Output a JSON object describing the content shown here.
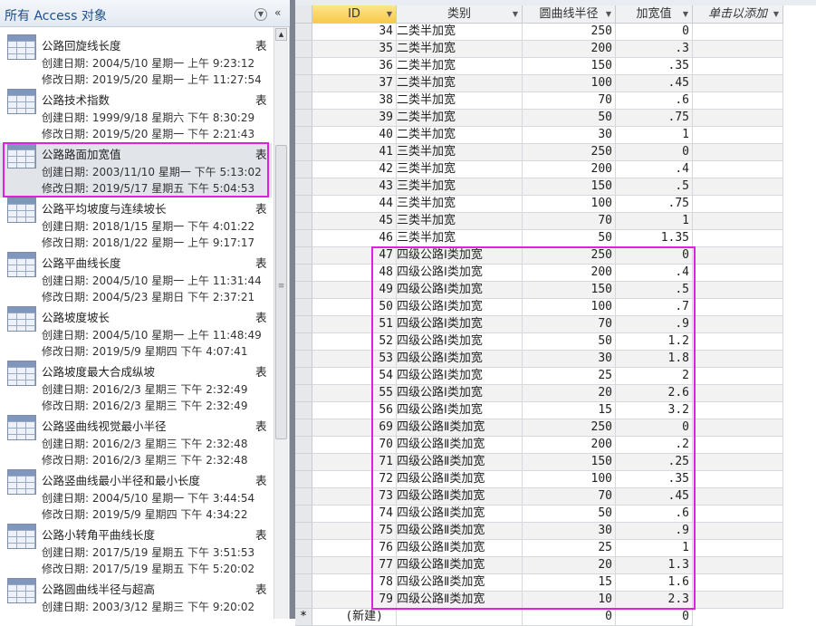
{
  "nav": {
    "title": "所有 Access 对象",
    "menu_icon": "chevron-down-circle-icon",
    "collapse_icon": "double-chevron-left-icon",
    "type_label": "表",
    "items": [
      {
        "name": "公路回旋线长度",
        "created": "创建日期: 2004/5/10 星期一 上午 9:23:12",
        "modified": "修改日期: 2019/5/20 星期一 上午 11:27:54"
      },
      {
        "name": "公路技术指数",
        "created": "创建日期: 1999/9/18 星期六 下午 8:30:29",
        "modified": "修改日期: 2019/5/20 星期一 下午 2:21:43"
      },
      {
        "name": "公路路面加宽值",
        "created": "创建日期: 2003/11/10 星期一 下午 5:13:02",
        "modified": "修改日期: 2019/5/17 星期五 下午 5:04:53",
        "selected": true
      },
      {
        "name": "公路平均坡度与连续坡长",
        "created": "创建日期: 2018/1/15 星期一 下午 4:01:22",
        "modified": "修改日期: 2018/1/22 星期一 上午 9:17:17"
      },
      {
        "name": "公路平曲线长度",
        "created": "创建日期: 2004/5/10 星期一 上午 11:31:44",
        "modified": "修改日期: 2004/5/23 星期日 下午 2:37:21"
      },
      {
        "name": "公路坡度坡长",
        "created": "创建日期: 2004/5/10 星期一 上午 11:48:49",
        "modified": "修改日期: 2019/5/9 星期四 下午 4:07:41"
      },
      {
        "name": "公路坡度最大合成纵坡",
        "created": "创建日期: 2016/2/3 星期三 下午 2:32:49",
        "modified": "修改日期: 2016/2/3 星期三 下午 2:32:49"
      },
      {
        "name": "公路竖曲线视觉最小半径",
        "created": "创建日期: 2016/2/3 星期三 下午 2:32:48",
        "modified": "修改日期: 2016/2/3 星期三 下午 2:32:48"
      },
      {
        "name": "公路竖曲线最小半径和最小长度",
        "created": "创建日期: 2004/5/10 星期一 下午 3:44:54",
        "modified": "修改日期: 2019/5/9 星期四 下午 4:34:22"
      },
      {
        "name": "公路小转角平曲线长度",
        "created": "创建日期: 2017/5/19 星期五 下午 3:51:53",
        "modified": "修改日期: 2017/5/19 星期五 下午 5:20:02"
      },
      {
        "name": "公路圆曲线半径与超高",
        "created": "创建日期: 2003/3/12 星期三 下午 9:20:02",
        "modified": ""
      }
    ]
  },
  "table": {
    "columns": [
      "ID",
      "类别",
      "圆曲线半径",
      "加宽值",
      "单击以添加"
    ],
    "rows": [
      [
        "34",
        "二类半加宽",
        "250",
        "0"
      ],
      [
        "35",
        "二类半加宽",
        "200",
        ".3"
      ],
      [
        "36",
        "二类半加宽",
        "150",
        ".35"
      ],
      [
        "37",
        "二类半加宽",
        "100",
        ".45"
      ],
      [
        "38",
        "二类半加宽",
        "70",
        ".6"
      ],
      [
        "39",
        "二类半加宽",
        "50",
        ".75"
      ],
      [
        "40",
        "二类半加宽",
        "30",
        "1"
      ],
      [
        "41",
        "三类半加宽",
        "250",
        "0"
      ],
      [
        "42",
        "三类半加宽",
        "200",
        ".4"
      ],
      [
        "43",
        "三类半加宽",
        "150",
        ".5"
      ],
      [
        "44",
        "三类半加宽",
        "100",
        ".75"
      ],
      [
        "45",
        "三类半加宽",
        "70",
        "1"
      ],
      [
        "46",
        "三类半加宽",
        "50",
        "1.35"
      ],
      [
        "47",
        "四级公路Ⅰ类加宽",
        "250",
        "0"
      ],
      [
        "48",
        "四级公路Ⅰ类加宽",
        "200",
        ".4"
      ],
      [
        "49",
        "四级公路Ⅰ类加宽",
        "150",
        ".5"
      ],
      [
        "50",
        "四级公路Ⅰ类加宽",
        "100",
        ".7"
      ],
      [
        "51",
        "四级公路Ⅰ类加宽",
        "70",
        ".9"
      ],
      [
        "52",
        "四级公路Ⅰ类加宽",
        "50",
        "1.2"
      ],
      [
        "53",
        "四级公路Ⅰ类加宽",
        "30",
        "1.8"
      ],
      [
        "54",
        "四级公路Ⅰ类加宽",
        "25",
        "2"
      ],
      [
        "55",
        "四级公路Ⅰ类加宽",
        "20",
        "2.6"
      ],
      [
        "56",
        "四级公路Ⅰ类加宽",
        "15",
        "3.2"
      ],
      [
        "69",
        "四级公路Ⅱ类加宽",
        "250",
        "0"
      ],
      [
        "70",
        "四级公路Ⅱ类加宽",
        "200",
        ".2"
      ],
      [
        "71",
        "四级公路Ⅱ类加宽",
        "150",
        ".25"
      ],
      [
        "72",
        "四级公路Ⅱ类加宽",
        "100",
        ".35"
      ],
      [
        "73",
        "四级公路Ⅱ类加宽",
        "70",
        ".45"
      ],
      [
        "74",
        "四级公路Ⅱ类加宽",
        "50",
        ".6"
      ],
      [
        "75",
        "四级公路Ⅱ类加宽",
        "30",
        ".9"
      ],
      [
        "76",
        "四级公路Ⅱ类加宽",
        "25",
        "1"
      ],
      [
        "77",
        "四级公路Ⅱ类加宽",
        "20",
        "1.3"
      ],
      [
        "78",
        "四级公路Ⅱ类加宽",
        "15",
        "1.6"
      ],
      [
        "79",
        "四级公路Ⅱ类加宽",
        "10",
        "2.3"
      ]
    ],
    "new_row": {
      "marker": "*",
      "id": "(新建)",
      "radius": "0",
      "widen": "0"
    }
  },
  "highlight_color": "#e020e0"
}
